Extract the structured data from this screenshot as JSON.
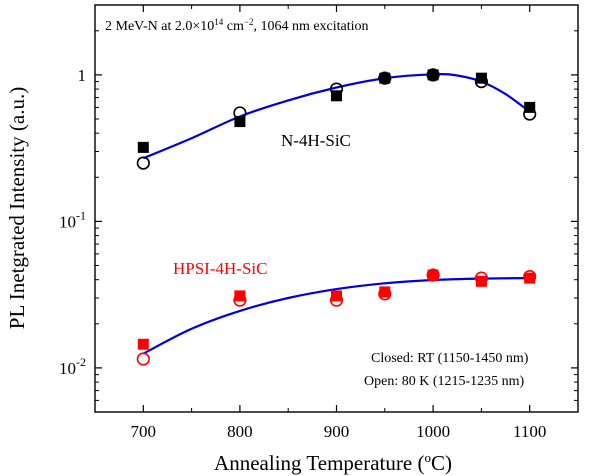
{
  "chart_data": {
    "type": "scatter",
    "annotation": {
      "parts": [
        "2 MeV-N at 2.0×10",
        "14",
        " cm",
        "−2",
        ", 1064 nm excitation"
      ]
    },
    "xlabel": {
      "main": "Annealing Temperature (",
      "sup": "o",
      "tail": "C)"
    },
    "ylabel": "PL Inetgrated Intensity (a.u.)",
    "x_axis": {
      "range": [
        650,
        1150
      ],
      "ticks": [
        700,
        800,
        900,
        1000,
        1100
      ],
      "tick_labels": [
        "700",
        "800",
        "900",
        "1000",
        "1100"
      ]
    },
    "y_axis": {
      "scale": "log",
      "range": [
        0.005,
        3.0
      ],
      "ticks": [
        {
          "value": 0.01,
          "base": "10",
          "exp": "-2"
        },
        {
          "value": 0.1,
          "base": "10",
          "exp": "-1"
        },
        {
          "value": 1,
          "base": "1",
          "exp": ""
        }
      ]
    },
    "series": [
      {
        "name": "N-4H-SiC closed",
        "color": "#000000",
        "marker": "filled-square",
        "x": [
          700,
          800,
          900,
          950,
          1000,
          1050,
          1100
        ],
        "y": [
          0.32,
          0.48,
          0.72,
          0.95,
          1.0,
          0.95,
          0.6
        ]
      },
      {
        "name": "N-4H-SiC open",
        "color": "#000000",
        "marker": "open-circle",
        "x": [
          700,
          800,
          900,
          950,
          1000,
          1050,
          1100
        ],
        "y": [
          0.25,
          0.55,
          0.8,
          0.95,
          1.0,
          0.9,
          0.54
        ]
      },
      {
        "name": "HPSI-4H-SiC closed",
        "color": "#ff0000",
        "marker": "filled-square",
        "x": [
          700,
          800,
          900,
          950,
          1000,
          1050,
          1100
        ],
        "y": [
          0.0145,
          0.031,
          0.031,
          0.033,
          0.043,
          0.039,
          0.041
        ]
      },
      {
        "name": "HPSI-4H-SiC open",
        "color": "#ff0000",
        "marker": "open-circle",
        "x": [
          700,
          800,
          900,
          950,
          1000,
          1050,
          1100
        ],
        "y": [
          0.0115,
          0.029,
          0.029,
          0.032,
          0.043,
          0.041,
          0.042
        ]
      }
    ],
    "fits": [
      {
        "color": "#0000dd",
        "x": [
          700,
          750,
          800,
          850,
          900,
          950,
          1000,
          1025,
          1050,
          1075,
          1100
        ],
        "y": [
          0.27,
          0.37,
          0.52,
          0.67,
          0.82,
          0.95,
          1.01,
          0.99,
          0.9,
          0.74,
          0.56
        ]
      },
      {
        "color": "#0000dd",
        "x": [
          700,
          750,
          800,
          850,
          900,
          950,
          1000,
          1050,
          1100
        ],
        "y": [
          0.0125,
          0.0185,
          0.0245,
          0.03,
          0.0345,
          0.0378,
          0.0398,
          0.0407,
          0.041
        ]
      }
    ],
    "series_labels": [
      {
        "text": "N-4H-SiC",
        "color": "#000000"
      },
      {
        "text": "HPSI-4H-SiC",
        "color": "#ff0000"
      }
    ],
    "legend": {
      "position": "bottom-right",
      "lines": [
        "Closed: RT (1150-1450 nm)",
        "Open: 80 K (1215-1235 nm)"
      ]
    }
  }
}
